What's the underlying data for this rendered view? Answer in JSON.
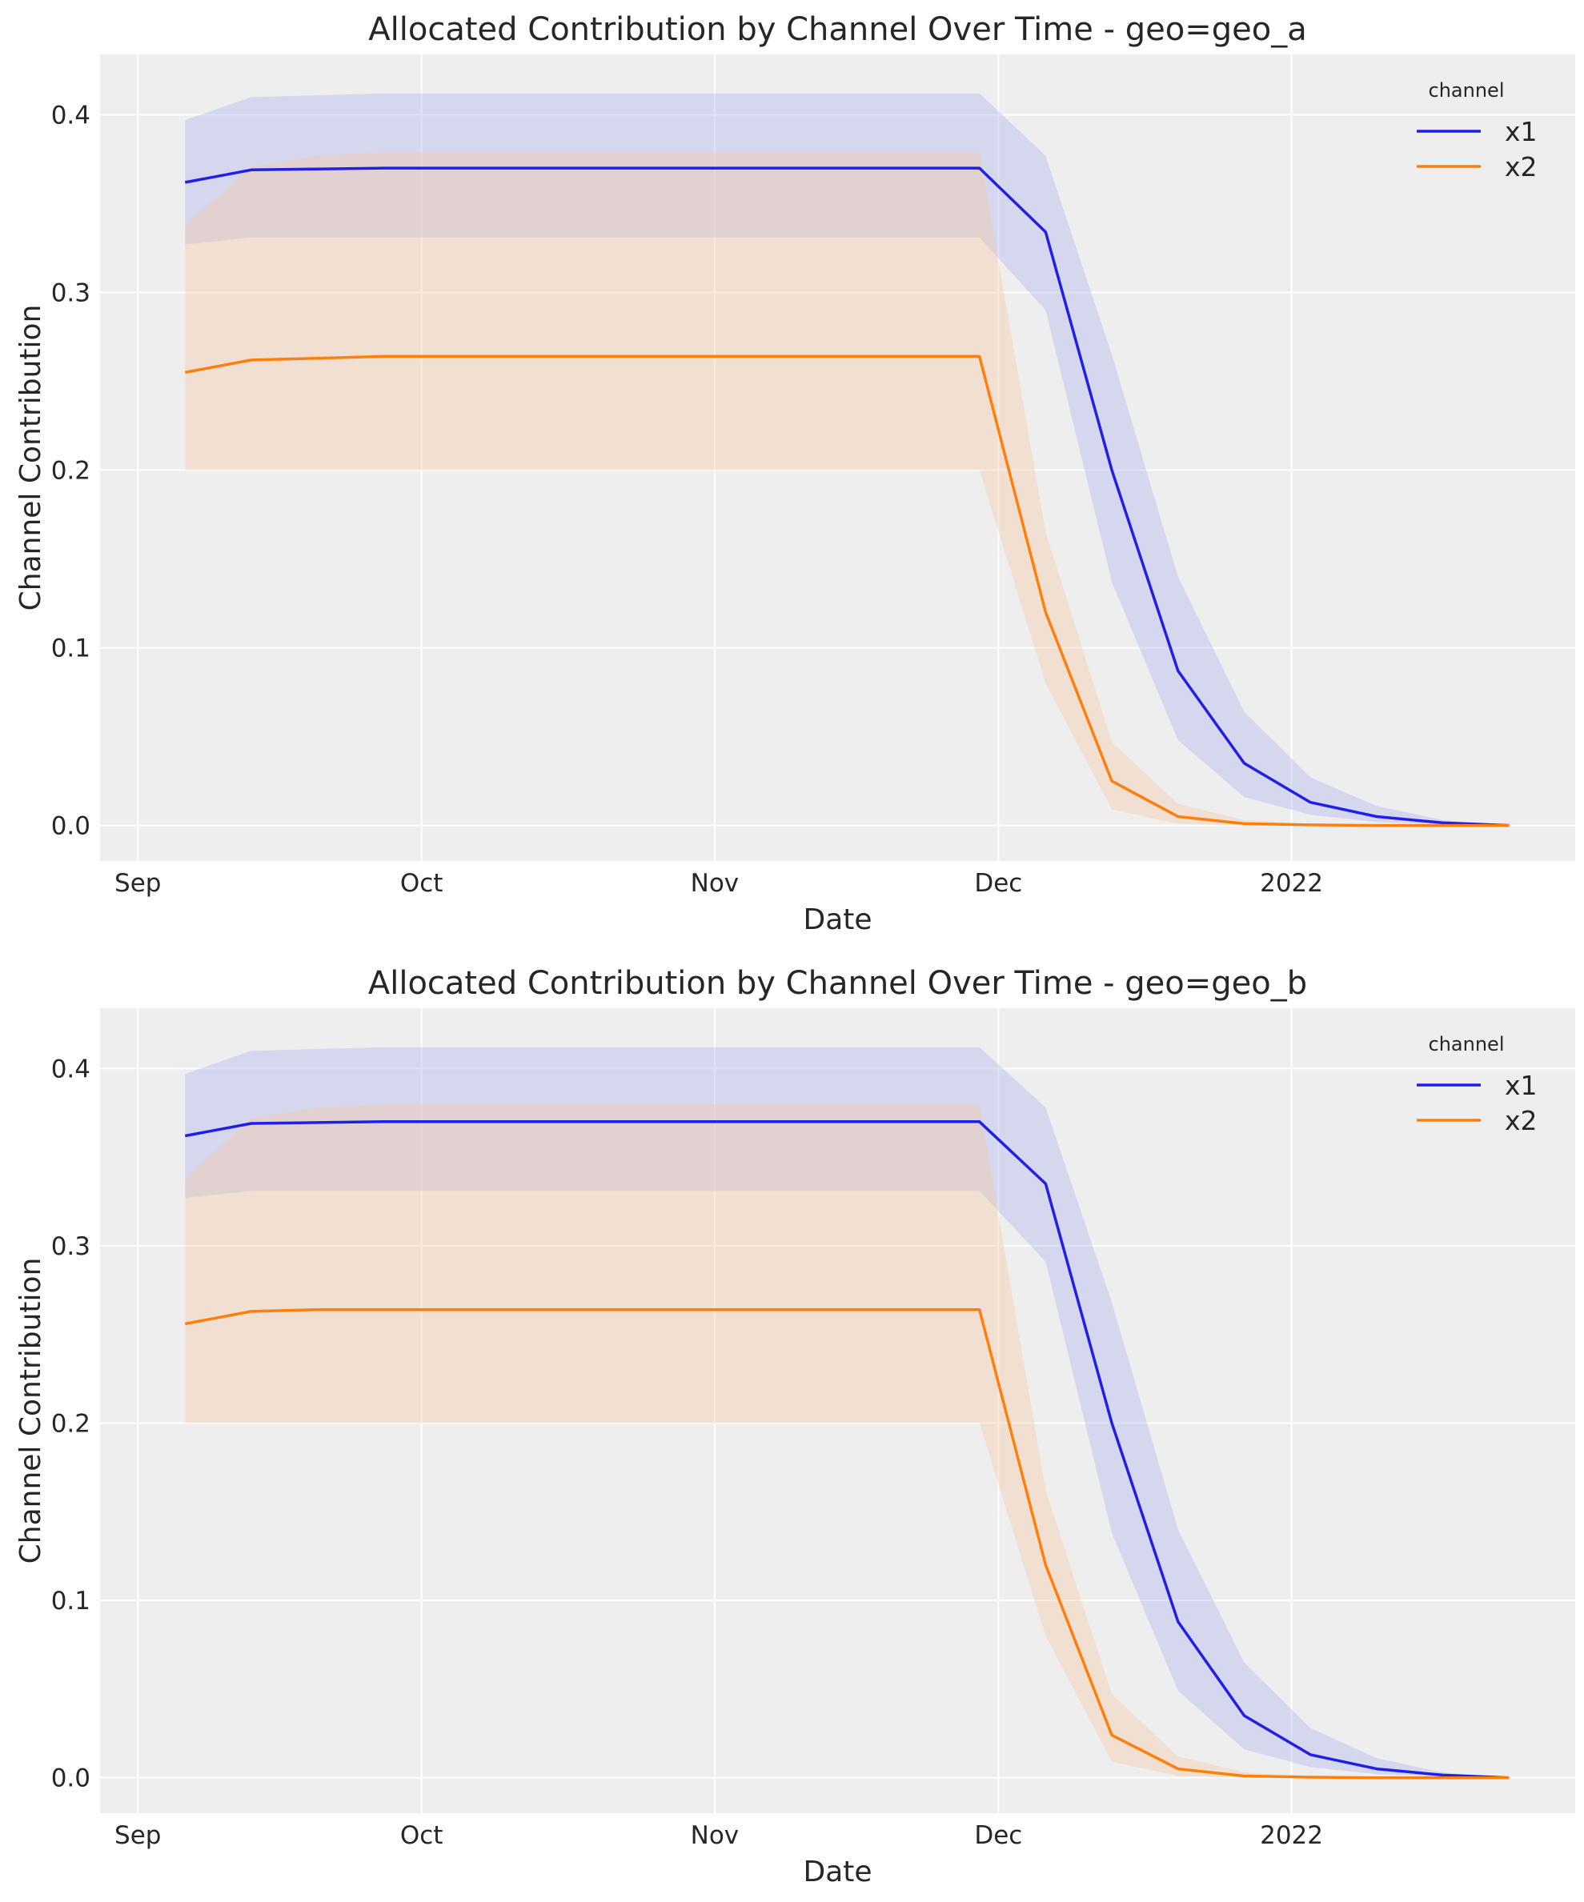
{
  "colors": {
    "x1": "#1f1fe8",
    "x2": "#ff7f0e",
    "x1_band": "#b0b4f0",
    "x2_band": "#f5c9a4",
    "background": "#eeeeee",
    "grid": "#ffffff"
  },
  "chart_data": [
    {
      "type": "line",
      "title": "Allocated Contribution by Channel Over Time - geo=geo_a",
      "xlabel": "Date",
      "ylabel": "Channel Contribution",
      "xlim": [
        "2021-08-28",
        "2022-01-31"
      ],
      "ylim": [
        -0.02,
        0.434
      ],
      "xticks": [
        {
          "date": "2021-09-01",
          "label": "Sep"
        },
        {
          "date": "2021-10-01",
          "label": "Oct"
        },
        {
          "date": "2021-11-01",
          "label": "Nov"
        },
        {
          "date": "2021-12-01",
          "label": "Dec"
        },
        {
          "date": "2022-01-01",
          "label": "2022"
        }
      ],
      "yticks": [
        0.0,
        0.1,
        0.2,
        0.3,
        0.4
      ],
      "ytick_labels": [
        "0.0",
        "0.1",
        "0.2",
        "0.3",
        "0.4"
      ],
      "grid": true,
      "legend": {
        "title": "channel",
        "placement": "top-right"
      },
      "x": [
        "2021-09-06",
        "2021-09-13",
        "2021-09-20",
        "2021-09-27",
        "2021-10-04",
        "2021-10-11",
        "2021-10-18",
        "2021-10-25",
        "2021-11-01",
        "2021-11-08",
        "2021-11-15",
        "2021-11-22",
        "2021-11-29",
        "2021-12-06",
        "2021-12-13",
        "2021-12-20",
        "2021-12-27",
        "2022-01-03",
        "2022-01-10",
        "2022-01-17",
        "2022-01-24"
      ],
      "series": [
        {
          "name": "x1",
          "values": [
            0.362,
            0.369,
            0.3695,
            0.37,
            0.37,
            0.37,
            0.37,
            0.37,
            0.37,
            0.37,
            0.37,
            0.37,
            0.37,
            0.334,
            0.2,
            0.087,
            0.035,
            0.013,
            0.005,
            0.0015,
            0.0
          ],
          "lower": [
            0.327,
            0.331,
            0.331,
            0.331,
            0.331,
            0.331,
            0.331,
            0.331,
            0.331,
            0.331,
            0.331,
            0.331,
            0.331,
            0.29,
            0.137,
            0.048,
            0.016,
            0.006,
            0.002,
            0.0005,
            0.0
          ],
          "upper": [
            0.397,
            0.41,
            0.411,
            0.412,
            0.412,
            0.412,
            0.412,
            0.412,
            0.412,
            0.412,
            0.412,
            0.412,
            0.412,
            0.377,
            0.265,
            0.14,
            0.064,
            0.027,
            0.011,
            0.003,
            0.0
          ]
        },
        {
          "name": "x2",
          "values": [
            0.255,
            0.262,
            0.263,
            0.264,
            0.264,
            0.264,
            0.264,
            0.264,
            0.264,
            0.264,
            0.264,
            0.264,
            0.264,
            0.12,
            0.025,
            0.005,
            0.001,
            0.0003,
            0.0,
            0.0,
            0.0
          ],
          "lower": [
            0.2,
            0.2,
            0.2,
            0.2,
            0.2,
            0.2,
            0.2,
            0.2,
            0.2,
            0.2,
            0.2,
            0.2,
            0.2,
            0.08,
            0.009,
            0.001,
            0.0,
            0.0,
            0.0,
            0.0,
            0.0
          ],
          "upper": [
            0.338,
            0.371,
            0.377,
            0.379,
            0.379,
            0.379,
            0.379,
            0.379,
            0.379,
            0.379,
            0.379,
            0.379,
            0.379,
            0.165,
            0.047,
            0.012,
            0.003,
            0.0008,
            0.0,
            0.0,
            0.0
          ]
        }
      ]
    },
    {
      "type": "line",
      "title": "Allocated Contribution by Channel Over Time - geo=geo_b",
      "xlabel": "Date",
      "ylabel": "Channel Contribution",
      "xlim": [
        "2021-08-28",
        "2022-01-31"
      ],
      "ylim": [
        -0.02,
        0.434
      ],
      "xticks": [
        {
          "date": "2021-09-01",
          "label": "Sep"
        },
        {
          "date": "2021-10-01",
          "label": "Oct"
        },
        {
          "date": "2021-11-01",
          "label": "Nov"
        },
        {
          "date": "2021-12-01",
          "label": "Dec"
        },
        {
          "date": "2022-01-01",
          "label": "2022"
        }
      ],
      "yticks": [
        0.0,
        0.1,
        0.2,
        0.3,
        0.4
      ],
      "ytick_labels": [
        "0.0",
        "0.1",
        "0.2",
        "0.3",
        "0.4"
      ],
      "grid": true,
      "legend": {
        "title": "channel",
        "placement": "top-right"
      },
      "x": [
        "2021-09-06",
        "2021-09-13",
        "2021-09-20",
        "2021-09-27",
        "2021-10-04",
        "2021-10-11",
        "2021-10-18",
        "2021-10-25",
        "2021-11-01",
        "2021-11-08",
        "2021-11-15",
        "2021-11-22",
        "2021-11-29",
        "2021-12-06",
        "2021-12-13",
        "2021-12-20",
        "2021-12-27",
        "2022-01-03",
        "2022-01-10",
        "2022-01-17",
        "2022-01-24"
      ],
      "series": [
        {
          "name": "x1",
          "values": [
            0.362,
            0.369,
            0.3695,
            0.37,
            0.37,
            0.37,
            0.37,
            0.37,
            0.37,
            0.37,
            0.37,
            0.37,
            0.37,
            0.335,
            0.2,
            0.088,
            0.035,
            0.013,
            0.005,
            0.0015,
            0.0
          ],
          "lower": [
            0.327,
            0.331,
            0.331,
            0.331,
            0.331,
            0.331,
            0.331,
            0.331,
            0.331,
            0.331,
            0.331,
            0.331,
            0.331,
            0.291,
            0.138,
            0.049,
            0.016,
            0.006,
            0.002,
            0.0005,
            0.0
          ],
          "upper": [
            0.397,
            0.41,
            0.411,
            0.412,
            0.412,
            0.412,
            0.412,
            0.412,
            0.412,
            0.412,
            0.412,
            0.412,
            0.412,
            0.378,
            0.268,
            0.14,
            0.065,
            0.028,
            0.011,
            0.003,
            0.0
          ]
        },
        {
          "name": "x2",
          "values": [
            0.256,
            0.263,
            0.264,
            0.264,
            0.264,
            0.264,
            0.264,
            0.264,
            0.264,
            0.264,
            0.264,
            0.264,
            0.264,
            0.12,
            0.024,
            0.005,
            0.001,
            0.0003,
            0.0,
            0.0,
            0.0
          ],
          "lower": [
            0.2,
            0.2,
            0.2,
            0.2,
            0.2,
            0.2,
            0.2,
            0.2,
            0.2,
            0.2,
            0.2,
            0.2,
            0.2,
            0.08,
            0.009,
            0.001,
            0.0,
            0.0,
            0.0,
            0.0,
            0.0
          ],
          "upper": [
            0.338,
            0.372,
            0.378,
            0.38,
            0.38,
            0.38,
            0.38,
            0.38,
            0.38,
            0.38,
            0.38,
            0.38,
            0.38,
            0.162,
            0.047,
            0.012,
            0.003,
            0.0008,
            0.0,
            0.0,
            0.0
          ]
        }
      ]
    }
  ]
}
